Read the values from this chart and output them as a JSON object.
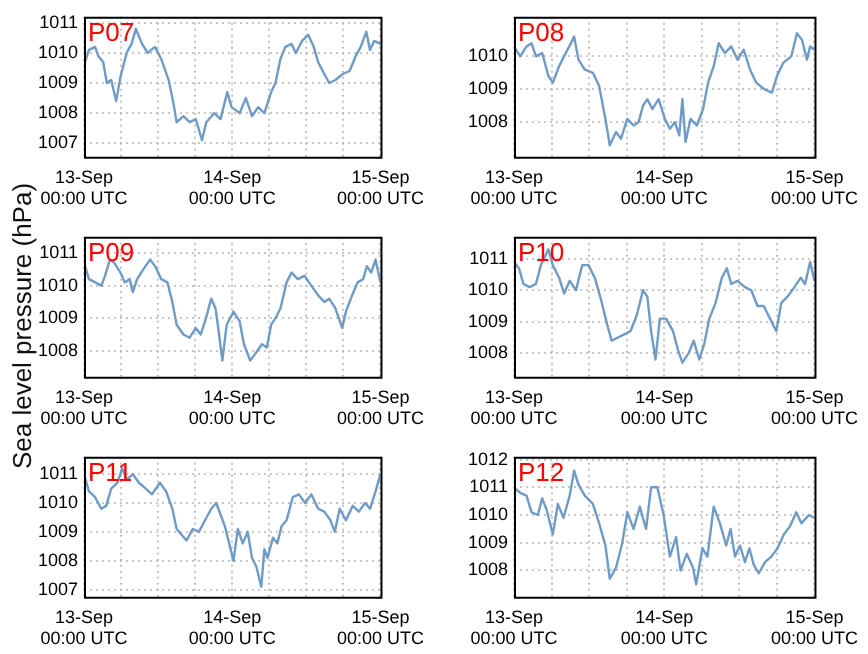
{
  "chart_data": [
    {
      "type": "line",
      "annotations": [
        "P07"
      ],
      "x": [
        "--09-13T00:00",
        "--09-13T00:48",
        "--09-13T01:48",
        "--09-13T02:18",
        "--09-13T03:06",
        "--09-13T03:42",
        "--09-13T04:24",
        "--09-13T05:12",
        "--09-13T05:54",
        "--09-13T06:54",
        "--09-13T07:42",
        "--09-13T08:24",
        "--09-13T09:24",
        "--09-13T10:18",
        "--09-13T11:30",
        "--09-13T12:30",
        "--09-13T13:42",
        "--09-13T14:30",
        "--09-13T15:00",
        "--09-13T16:06",
        "--09-13T17:06",
        "--09-13T18:06",
        "--09-13T19:06",
        "--09-13T19:48",
        "--09-13T21:06",
        "--09-13T22:06",
        "--09-13T23:12",
        "--09-13T23:54",
        "--09-14T01:12",
        "--09-14T02:12",
        "--09-14T03:12",
        "--09-14T04:12",
        "--09-14T05:12",
        "--09-14T06:18",
        "--09-14T07:00",
        "--09-14T07:48",
        "--09-14T08:36",
        "--09-14T09:36",
        "--09-14T10:18",
        "--09-14T11:18",
        "--09-14T12:18",
        "--09-14T13:12",
        "--09-14T13:54",
        "--09-14T14:54",
        "--09-14T15:42",
        "--09-14T16:42",
        "--09-14T17:54",
        "--09-14T19:00",
        "--09-14T20:00",
        "--09-14T20:48",
        "--09-14T21:42",
        "--09-14T22:18",
        "--09-14T23:00",
        "--09-15T00:00"
      ],
      "series": [
        {
          "color": "#6f9bc6",
          "values": [
            1009.6,
            1010.1,
            1010.2,
            1009.9,
            1009.7,
            1009,
            1009.1,
            1008.4,
            1009.2,
            1010,
            1010.3,
            1010.8,
            1010.3,
            1010,
            1010.2,
            1009.8,
            1009.1,
            1008.3,
            1007.7,
            1007.9,
            1007.7,
            1007.8,
            1007.1,
            1007.7,
            1008,
            1007.8,
            1008.7,
            1008.2,
            1008,
            1008.5,
            1007.9,
            1008.2,
            1008,
            1008.7,
            1009,
            1009.8,
            1010.2,
            1010.3,
            1010,
            1010.4,
            1010.6,
            1010.2,
            1009.7,
            1009.3,
            1009,
            1009.1,
            1009.3,
            1009.4,
            1009.9,
            1010.2,
            1010.7,
            1010.1,
            1010.4,
            1010.3
          ]
        }
      ],
      "xlim": [
        "--09-13T00:00",
        "--09-15T00:00"
      ],
      "xticks": [
        {
          "value": "--09-13T00:00",
          "label": "13-Sep\n00:00 UTC"
        },
        {
          "value": "--09-13T06:00",
          "label": null
        },
        {
          "value": "--09-13T12:00",
          "label": null
        },
        {
          "value": "--09-13T18:00",
          "label": null
        },
        {
          "value": "--09-14T00:00",
          "label": "14-Sep\n00:00 UTC"
        },
        {
          "value": "--09-14T06:00",
          "label": null
        },
        {
          "value": "--09-14T12:00",
          "label": null
        },
        {
          "value": "--09-14T18:00",
          "label": null
        },
        {
          "value": "--09-15T00:00",
          "label": "15-Sep\n00:00 UTC"
        }
      ],
      "ylim": [
        1006.55,
        1011.2
      ],
      "yticks": [
        1007,
        1008,
        1009,
        1010,
        1011
      ],
      "grid": true
    },
    {
      "type": "line",
      "annotations": [
        "P08"
      ],
      "x": [
        "--09-13T00:00",
        "--09-13T01:00",
        "--09-13T02:00",
        "--09-13T02:48",
        "--09-13T03:30",
        "--09-13T04:30",
        "--09-13T05:30",
        "--09-13T06:12",
        "--09-13T07:12",
        "--09-13T08:00",
        "--09-13T09:06",
        "--09-13T09:36",
        "--09-13T10:18",
        "--09-13T11:18",
        "--09-13T12:36",
        "--09-13T13:36",
        "--09-13T14:36",
        "--09-13T15:18",
        "--09-13T16:18",
        "--09-13T17:06",
        "--09-13T18:06",
        "--09-13T19:06",
        "--09-13T19:54",
        "--09-13T20:36",
        "--09-13T21:18",
        "--09-13T22:06",
        "--09-13T23:06",
        "--09-14T00:06",
        "--09-14T00:54",
        "--09-14T01:42",
        "--09-14T02:24",
        "--09-14T02:54",
        "--09-14T03:24",
        "--09-14T04:12",
        "--09-14T05:12",
        "--09-14T06:12",
        "--09-14T07:00",
        "--09-14T07:54",
        "--09-14T08:42",
        "--09-14T09:42",
        "--09-14T10:42",
        "--09-14T11:42",
        "--09-14T12:42",
        "--09-14T13:42",
        "--09-14T14:42",
        "--09-14T16:00",
        "--09-14T17:12",
        "--09-14T18:00",
        "--09-14T19:00",
        "--09-14T20:18",
        "--09-14T21:12",
        "--09-14T22:00",
        "--09-14T22:48",
        "--09-14T23:18",
        "--09-15T00:00"
      ],
      "series": [
        {
          "color": "#6f9bc6",
          "values": [
            1010.3,
            1010,
            1010.3,
            1010.4,
            1010,
            1010.1,
            1009.4,
            1009.2,
            1009.7,
            1010,
            1010.4,
            1010.6,
            1009.9,
            1009.6,
            1009.5,
            1009.1,
            1008.1,
            1007.3,
            1007.7,
            1007.5,
            1008.1,
            1007.9,
            1008,
            1008.5,
            1008.7,
            1008.4,
            1008.7,
            1008.1,
            1007.8,
            1008,
            1007.6,
            1008.7,
            1007.4,
            1008.1,
            1007.9,
            1008.4,
            1009.2,
            1009.7,
            1010.4,
            1010.1,
            1010.3,
            1009.9,
            1010.2,
            1009.6,
            1009.2,
            1009,
            1008.9,
            1009.4,
            1009.8,
            1010,
            1010.7,
            1010.5,
            1009.9,
            1010.3,
            1010.2
          ]
        }
      ],
      "xlim": [
        "--09-13T00:00",
        "--09-15T00:00"
      ],
      "xticks": [
        {
          "value": "--09-13T00:00",
          "label": "13-Sep\n00:00 UTC"
        },
        {
          "value": "--09-13T06:00",
          "label": null
        },
        {
          "value": "--09-13T12:00",
          "label": null
        },
        {
          "value": "--09-13T18:00",
          "label": null
        },
        {
          "value": "--09-14T00:00",
          "label": "14-Sep\n00:00 UTC"
        },
        {
          "value": "--09-14T06:00",
          "label": null
        },
        {
          "value": "--09-14T12:00",
          "label": null
        },
        {
          "value": "--09-14T18:00",
          "label": null
        },
        {
          "value": "--09-15T00:00",
          "label": "15-Sep\n00:00 UTC"
        }
      ],
      "ylim": [
        1006.95,
        1011.2
      ],
      "yticks": [
        1008,
        1009,
        1010
      ],
      "grid": true
    },
    {
      "type": "line",
      "annotations": [
        "P09"
      ],
      "ylabel": "Sea level pressure (hPa)",
      "x": [
        "--09-13T00:00",
        "--09-13T00:48",
        "--09-13T01:48",
        "--09-13T02:48",
        "--09-13T03:24",
        "--09-13T04:12",
        "--09-13T04:54",
        "--09-13T05:54",
        "--09-13T06:36",
        "--09-13T07:24",
        "--09-13T07:54",
        "--09-13T08:36",
        "--09-13T09:36",
        "--09-13T10:42",
        "--09-13T11:30",
        "--09-13T12:30",
        "--09-13T13:30",
        "--09-13T14:18",
        "--09-13T15:00",
        "--09-13T16:06",
        "--09-13T17:06",
        "--09-13T18:06",
        "--09-13T18:54",
        "--09-13T19:36",
        "--09-13T20:36",
        "--09-13T21:18",
        "--09-13T21:48",
        "--09-13T22:24",
        "--09-13T23:06",
        "--09-14T00:12",
        "--09-14T01:12",
        "--09-14T01:54",
        "--09-14T02:54",
        "--09-14T03:42",
        "--09-14T04:48",
        "--09-14T05:36",
        "--09-14T06:18",
        "--09-14T07:00",
        "--09-14T07:48",
        "--09-14T08:48",
        "--09-14T09:36",
        "--09-14T10:36",
        "--09-14T11:42",
        "--09-14T12:48",
        "--09-14T13:54",
        "--09-14T14:54",
        "--09-14T15:42",
        "--09-14T16:42",
        "--09-14T17:48",
        "--09-14T18:24",
        "--09-14T19:24",
        "--09-14T20:18",
        "--09-14T21:12",
        "--09-14T21:48",
        "--09-14T22:30",
        "--09-14T23:12",
        "--09-15T00:00"
      ],
      "series": [
        {
          "color": "#6f9bc6",
          "values": [
            1010.7,
            1010.2,
            1010.1,
            1010,
            1010.3,
            1010.8,
            1010.7,
            1010.4,
            1010.1,
            1010.2,
            1009.8,
            1010.2,
            1010.5,
            1010.8,
            1010.6,
            1010.2,
            1010.1,
            1009.5,
            1008.8,
            1008.5,
            1008.4,
            1008.7,
            1008.5,
            1008.9,
            1009.6,
            1009.3,
            1008.6,
            1007.7,
            1008.8,
            1009.2,
            1008.9,
            1008.2,
            1007.7,
            1007.9,
            1008.2,
            1008.1,
            1008.8,
            1009,
            1009.3,
            1010.1,
            1010.4,
            1010.2,
            1010.3,
            1010,
            1009.7,
            1009.5,
            1009.6,
            1009.3,
            1008.7,
            1009.2,
            1009.7,
            1010.1,
            1010.2,
            1010.6,
            1010.4,
            1010.8,
            1010.1
          ]
        }
      ],
      "xlim": [
        "--09-13T00:00",
        "--09-15T00:00"
      ],
      "xticks": [
        {
          "value": "--09-13T00:00",
          "label": "13-Sep\n00:00 UTC"
        },
        {
          "value": "--09-13T06:00",
          "label": null
        },
        {
          "value": "--09-13T12:00",
          "label": null
        },
        {
          "value": "--09-13T18:00",
          "label": null
        },
        {
          "value": "--09-14T00:00",
          "label": "14-Sep\n00:00 UTC"
        },
        {
          "value": "--09-14T06:00",
          "label": null
        },
        {
          "value": "--09-14T12:00",
          "label": null
        },
        {
          "value": "--09-14T18:00",
          "label": null
        },
        {
          "value": "--09-15T00:00",
          "label": "15-Sep\n00:00 UTC"
        }
      ],
      "ylim": [
        1007.2,
        1011.5
      ],
      "yticks": [
        1008,
        1009,
        1010,
        1011
      ],
      "grid": true
    },
    {
      "type": "line",
      "annotations": [
        "P10"
      ],
      "x": [
        "--09-13T00:00",
        "--09-13T00:48",
        "--09-13T01:30",
        "--09-13T02:30",
        "--09-13T03:30",
        "--09-13T04:18",
        "--09-13T05:00",
        "--09-13T05:30",
        "--09-13T06:12",
        "--09-13T07:12",
        "--09-13T08:00",
        "--09-13T08:54",
        "--09-13T09:54",
        "--09-13T10:54",
        "--09-13T11:54",
        "--09-13T12:54",
        "--09-13T13:54",
        "--09-13T14:54",
        "--09-13T15:36",
        "--09-13T16:36",
        "--09-13T17:36",
        "--09-13T18:36",
        "--09-13T19:36",
        "--09-13T20:36",
        "--09-13T21:18",
        "--09-13T21:54",
        "--09-13T22:36",
        "--09-13T23:18",
        "--09-14T00:18",
        "--09-14T01:24",
        "--09-14T02:12",
        "--09-14T02:54",
        "--09-14T03:54",
        "--09-14T04:42",
        "--09-14T05:36",
        "--09-14T06:24",
        "--09-14T07:12",
        "--09-14T08:12",
        "--09-14T09:12",
        "--09-14T10:00",
        "--09-14T10:42",
        "--09-14T11:42",
        "--09-14T12:54",
        "--09-14T13:54",
        "--09-14T14:54",
        "--09-14T15:54",
        "--09-14T16:54",
        "--09-14T17:54",
        "--09-14T18:42",
        "--09-14T19:42",
        "--09-14T20:48",
        "--09-14T21:48",
        "--09-14T22:30",
        "--09-14T23:18",
        "--09-15T00:00"
      ],
      "series": [
        {
          "color": "#6f9bc6",
          "values": [
            1010.9,
            1010.7,
            1010.2,
            1010.1,
            1010.2,
            1010.8,
            1011.1,
            1011.3,
            1010.8,
            1010.4,
            1009.9,
            1010.3,
            1010,
            1010.8,
            1010.8,
            1010.4,
            1009.7,
            1008.9,
            1008.4,
            1008.5,
            1008.6,
            1008.7,
            1009.2,
            1010,
            1009.8,
            1008.7,
            1007.8,
            1009.1,
            1009.1,
            1008.7,
            1008.1,
            1007.7,
            1008,
            1008.4,
            1007.8,
            1008.3,
            1009.1,
            1009.6,
            1010.4,
            1010.7,
            1010.2,
            1010.3,
            1010.1,
            1010,
            1009.5,
            1009.5,
            1009.1,
            1008.7,
            1009.6,
            1009.8,
            1010.1,
            1010.4,
            1010.2,
            1010.9,
            1010.3
          ]
        }
      ],
      "xlim": [
        "--09-13T00:00",
        "--09-15T00:00"
      ],
      "xticks": [
        {
          "value": "--09-13T00:00",
          "label": "13-Sep\n00:00 UTC"
        },
        {
          "value": "--09-13T06:00",
          "label": null
        },
        {
          "value": "--09-13T12:00",
          "label": null
        },
        {
          "value": "--09-13T18:00",
          "label": null
        },
        {
          "value": "--09-14T00:00",
          "label": "14-Sep\n00:00 UTC"
        },
        {
          "value": "--09-14T06:00",
          "label": null
        },
        {
          "value": "--09-14T12:00",
          "label": null
        },
        {
          "value": "--09-14T18:00",
          "label": null
        },
        {
          "value": "--09-15T00:00",
          "label": "15-Sep\n00:00 UTC"
        }
      ],
      "ylim": [
        1007.25,
        1011.7
      ],
      "yticks": [
        1008,
        1009,
        1010,
        1011
      ],
      "grid": true
    },
    {
      "type": "line",
      "annotations": [
        "P11"
      ],
      "x": [
        "--09-13T00:00",
        "--09-13T00:48",
        "--09-13T01:48",
        "--09-13T02:48",
        "--09-13T03:36",
        "--09-13T04:24",
        "--09-13T05:24",
        "--09-13T06:12",
        "--09-13T06:54",
        "--09-13T07:54",
        "--09-13T08:54",
        "--09-13T10:00",
        "--09-13T11:00",
        "--09-13T12:18",
        "--09-13T13:18",
        "--09-13T14:18",
        "--09-13T15:00",
        "--09-13T15:48",
        "--09-13T16:36",
        "--09-13T17:36",
        "--09-13T18:36",
        "--09-13T19:36",
        "--09-13T20:36",
        "--09-13T21:24",
        "--09-13T22:06",
        "--09-13T22:48",
        "--09-13T23:30",
        "--09-14T00:12",
        "--09-14T00:54",
        "--09-14T01:42",
        "--09-14T02:30",
        "--09-14T03:12",
        "--09-14T03:54",
        "--09-14T04:42",
        "--09-14T05:12",
        "--09-14T05:42",
        "--09-14T06:36",
        "--09-14T07:18",
        "--09-14T08:00",
        "--09-14T08:48",
        "--09-14T09:48",
        "--09-14T10:48",
        "--09-14T11:48",
        "--09-14T12:48",
        "--09-14T13:54",
        "--09-14T14:54",
        "--09-14T15:54",
        "--09-14T16:36",
        "--09-14T17:24",
        "--09-14T18:24",
        "--09-14T19:30",
        "--09-14T20:30",
        "--09-14T21:30",
        "--09-14T22:18",
        "--09-14T23:12",
        "--09-15T00:00"
      ],
      "series": [
        {
          "color": "#6f9bc6",
          "values": [
            1011,
            1010.4,
            1010.2,
            1009.8,
            1009.9,
            1010.5,
            1010.7,
            1011.2,
            1010.8,
            1011,
            1010.7,
            1010.5,
            1010.3,
            1010.7,
            1010.4,
            1009.8,
            1009.1,
            1008.9,
            1008.7,
            1009.1,
            1009,
            1009.4,
            1009.8,
            1010,
            1009.6,
            1009.2,
            1008.6,
            1008,
            1009.1,
            1008.6,
            1009,
            1008.1,
            1007.8,
            1007.1,
            1008.4,
            1008.1,
            1008.8,
            1008.6,
            1009.2,
            1009.4,
            1010.2,
            1010.3,
            1010,
            1010.3,
            1009.8,
            1009.7,
            1009.4,
            1009,
            1009.8,
            1009.4,
            1009.9,
            1009.7,
            1010,
            1009.8,
            1010.4,
            1011
          ]
        }
      ],
      "xlim": [
        "--09-13T00:00",
        "--09-15T00:00"
      ],
      "xticks": [
        {
          "value": "--09-13T00:00",
          "label": "13-Sep\n00:00 UTC"
        },
        {
          "value": "--09-13T06:00",
          "label": null
        },
        {
          "value": "--09-13T12:00",
          "label": null
        },
        {
          "value": "--09-13T18:00",
          "label": null
        },
        {
          "value": "--09-14T00:00",
          "label": "14-Sep\n00:00 UTC"
        },
        {
          "value": "--09-14T06:00",
          "label": null
        },
        {
          "value": "--09-14T12:00",
          "label": null
        },
        {
          "value": "--09-14T18:00",
          "label": null
        },
        {
          "value": "--09-15T00:00",
          "label": "15-Sep\n00:00 UTC"
        }
      ],
      "ylim": [
        1006.75,
        1011.6
      ],
      "yticks": [
        1007,
        1008,
        1009,
        1010,
        1011
      ],
      "grid": true
    },
    {
      "type": "line",
      "annotations": [
        "P12"
      ],
      "x": [
        "--09-13T00:00",
        "--09-13T01:00",
        "--09-13T02:00",
        "--09-13T02:48",
        "--09-13T03:48",
        "--09-13T04:30",
        "--09-13T05:12",
        "--09-13T06:12",
        "--09-13T07:00",
        "--09-13T07:54",
        "--09-13T08:54",
        "--09-13T09:36",
        "--09-13T10:18",
        "--09-13T11:18",
        "--09-13T12:36",
        "--09-13T13:36",
        "--09-13T14:36",
        "--09-13T15:18",
        "--09-13T16:18",
        "--09-13T17:18",
        "--09-13T18:06",
        "--09-13T19:06",
        "--09-13T20:06",
        "--09-13T21:06",
        "--09-13T21:54",
        "--09-13T22:54",
        "--09-13T23:54",
        "--09-14T00:54",
        "--09-14T01:54",
        "--09-14T02:36",
        "--09-14T03:36",
        "--09-14T04:36",
        "--09-14T05:06",
        "--09-14T06:06",
        "--09-14T06:54",
        "--09-14T07:54",
        "--09-14T08:54",
        "--09-14T09:54",
        "--09-14T10:36",
        "--09-14T11:18",
        "--09-14T12:06",
        "--09-14T12:54",
        "--09-14T13:36",
        "--09-14T14:18",
        "--09-14T15:06",
        "--09-14T16:06",
        "--09-14T17:06",
        "--09-14T18:06",
        "--09-14T19:06",
        "--09-14T20:06",
        "--09-14T21:06",
        "--09-14T21:54",
        "--09-14T23:06",
        "--09-15T00:00"
      ],
      "series": [
        {
          "color": "#6f9bc6",
          "values": [
            1011,
            1010.8,
            1010.7,
            1010.1,
            1010,
            1010.6,
            1010.2,
            1009.3,
            1010.4,
            1009.9,
            1010.7,
            1011.6,
            1011.1,
            1010.7,
            1010.4,
            1009.7,
            1008.9,
            1007.7,
            1008.1,
            1009,
            1010.1,
            1009.5,
            1010.3,
            1009.5,
            1011,
            1011,
            1010,
            1008.5,
            1009.2,
            1008,
            1008.6,
            1008.1,
            1007.5,
            1008.8,
            1008.5,
            1010.3,
            1009.7,
            1008.9,
            1009.5,
            1008.5,
            1008.9,
            1008.3,
            1008.8,
            1008.2,
            1007.9,
            1008.3,
            1008.5,
            1008.8,
            1009.3,
            1009.6,
            1010.1,
            1009.7,
            1010,
            1009.9
          ]
        }
      ],
      "xlim": [
        "--09-13T00:00",
        "--09-15T00:00"
      ],
      "xticks": [
        {
          "value": "--09-13T00:00",
          "label": "13-Sep\n00:00 UTC"
        },
        {
          "value": "--09-13T06:00",
          "label": null
        },
        {
          "value": "--09-13T12:00",
          "label": null
        },
        {
          "value": "--09-13T18:00",
          "label": null
        },
        {
          "value": "--09-14T00:00",
          "label": "14-Sep\n00:00 UTC"
        },
        {
          "value": "--09-14T06:00",
          "label": null
        },
        {
          "value": "--09-14T12:00",
          "label": null
        },
        {
          "value": "--09-14T18:00",
          "label": null
        },
        {
          "value": "--09-15T00:00",
          "label": "15-Sep\n00:00 UTC"
        }
      ],
      "ylim": [
        1007.05,
        1012.1
      ],
      "yticks": [
        1008,
        1009,
        1010,
        1011,
        1012
      ],
      "grid": true
    }
  ]
}
